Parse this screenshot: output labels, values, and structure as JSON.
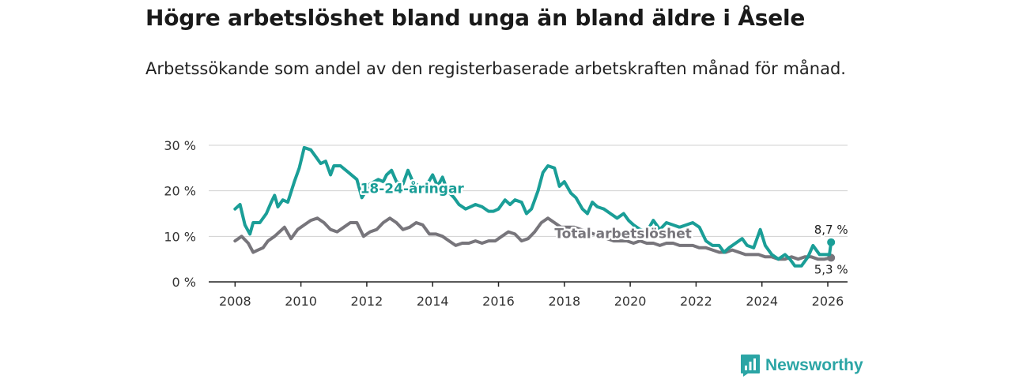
{
  "header": {
    "title": "Högre arbetslöshet bland unga än bland äldre i Åsele",
    "subtitle": "Arbetssökande som andel av den registerbaserade arbetskraften månad för månad."
  },
  "brand": {
    "name": "Newsworthy",
    "logo": "newsworthy-logo-icon"
  },
  "colors": {
    "youth": "#1a9e97",
    "total": "#77757b",
    "grid": "#d0d0d0",
    "axis": "#222222",
    "brand": "#2ba5a5"
  },
  "chart_data": {
    "type": "line",
    "title": "Högre arbetslöshet bland unga än bland äldre i Åsele",
    "xlabel": "",
    "ylabel": "",
    "xlim": [
      2007.2,
      2026.6
    ],
    "ylim": [
      0,
      30
    ],
    "grid": true,
    "y_ticks": [
      0,
      10,
      20,
      30
    ],
    "y_tick_labels": [
      "0 %",
      "10 %",
      "20 %",
      "30 %"
    ],
    "x_ticks": [
      2008,
      2010,
      2012,
      2014,
      2016,
      2018,
      2020,
      2022,
      2024,
      2026
    ],
    "x_tick_labels": [
      "2008",
      "2010",
      "2012",
      "2014",
      "2016",
      "2018",
      "2020",
      "2022",
      "2024",
      "2026"
    ],
    "series": [
      {
        "name": "18-24-åringar",
        "color": "#1a9e97",
        "end_label": "8,7 %",
        "points": [
          [
            2008.0,
            16
          ],
          [
            2008.15,
            17
          ],
          [
            2008.3,
            12.5
          ],
          [
            2008.45,
            10.5
          ],
          [
            2008.55,
            13
          ],
          [
            2008.75,
            13
          ],
          [
            2008.95,
            15
          ],
          [
            2009.1,
            17.5
          ],
          [
            2009.2,
            19
          ],
          [
            2009.3,
            16.5
          ],
          [
            2009.45,
            18
          ],
          [
            2009.6,
            17.5
          ],
          [
            2009.8,
            22
          ],
          [
            2009.95,
            25
          ],
          [
            2010.1,
            29.5
          ],
          [
            2010.3,
            29
          ],
          [
            2010.45,
            27.5
          ],
          [
            2010.6,
            26
          ],
          [
            2010.75,
            26.5
          ],
          [
            2010.9,
            23.5
          ],
          [
            2011.0,
            25.5
          ],
          [
            2011.2,
            25.5
          ],
          [
            2011.45,
            24
          ],
          [
            2011.7,
            22.5
          ],
          [
            2011.85,
            18.5
          ],
          [
            2012.1,
            21.5
          ],
          [
            2012.35,
            22.5
          ],
          [
            2012.5,
            22
          ],
          [
            2012.6,
            23.5
          ],
          [
            2012.75,
            24.5
          ],
          [
            2012.9,
            22
          ],
          [
            2013.1,
            21.5
          ],
          [
            2013.25,
            24.5
          ],
          [
            2013.4,
            22
          ],
          [
            2013.6,
            21
          ],
          [
            2013.8,
            21
          ],
          [
            2014.0,
            23.5
          ],
          [
            2014.15,
            21
          ],
          [
            2014.3,
            23
          ],
          [
            2014.45,
            20
          ],
          [
            2014.65,
            18.5
          ],
          [
            2014.8,
            17
          ],
          [
            2015.0,
            16
          ],
          [
            2015.15,
            16.5
          ],
          [
            2015.3,
            17
          ],
          [
            2015.5,
            16.5
          ],
          [
            2015.7,
            15.5
          ],
          [
            2015.85,
            15.5
          ],
          [
            2016.0,
            16
          ],
          [
            2016.2,
            18
          ],
          [
            2016.35,
            17
          ],
          [
            2016.5,
            18
          ],
          [
            2016.7,
            17.5
          ],
          [
            2016.85,
            15
          ],
          [
            2017.0,
            16
          ],
          [
            2017.2,
            20
          ],
          [
            2017.35,
            24
          ],
          [
            2017.5,
            25.5
          ],
          [
            2017.7,
            25
          ],
          [
            2017.85,
            21
          ],
          [
            2018.0,
            22
          ],
          [
            2018.2,
            19.5
          ],
          [
            2018.35,
            18.5
          ],
          [
            2018.55,
            16
          ],
          [
            2018.7,
            15
          ],
          [
            2018.85,
            17.5
          ],
          [
            2019.0,
            16.5
          ],
          [
            2019.2,
            16
          ],
          [
            2019.4,
            15
          ],
          [
            2019.6,
            14
          ],
          [
            2019.8,
            15
          ],
          [
            2019.95,
            13.5
          ],
          [
            2020.1,
            12.5
          ],
          [
            2020.3,
            11.5
          ],
          [
            2020.5,
            11
          ],
          [
            2020.7,
            13.5
          ],
          [
            2020.9,
            11.5
          ],
          [
            2021.1,
            13
          ],
          [
            2021.3,
            12.5
          ],
          [
            2021.5,
            12
          ],
          [
            2021.7,
            12.5
          ],
          [
            2021.9,
            13
          ],
          [
            2022.1,
            12
          ],
          [
            2022.3,
            9
          ],
          [
            2022.5,
            8
          ],
          [
            2022.7,
            8
          ],
          [
            2022.85,
            6.5
          ],
          [
            2023.0,
            7.5
          ],
          [
            2023.2,
            8.5
          ],
          [
            2023.4,
            9.5
          ],
          [
            2023.55,
            8
          ],
          [
            2023.75,
            7.5
          ],
          [
            2023.95,
            11.5
          ],
          [
            2024.1,
            8
          ],
          [
            2024.3,
            6
          ],
          [
            2024.5,
            5
          ],
          [
            2024.7,
            6
          ],
          [
            2024.85,
            5
          ],
          [
            2025.0,
            3.5
          ],
          [
            2025.2,
            3.5
          ],
          [
            2025.4,
            5.5
          ],
          [
            2025.55,
            8
          ],
          [
            2025.75,
            6
          ],
          [
            2025.9,
            6
          ],
          [
            2026.05,
            6
          ],
          [
            2026.1,
            8.7
          ]
        ]
      },
      {
        "name": "Total arbetslöshet",
        "color": "#77757b",
        "end_label": "5,3 %",
        "points": [
          [
            2008.0,
            9
          ],
          [
            2008.2,
            10
          ],
          [
            2008.4,
            8.5
          ],
          [
            2008.55,
            6.5
          ],
          [
            2008.7,
            7
          ],
          [
            2008.85,
            7.5
          ],
          [
            2009.0,
            9
          ],
          [
            2009.2,
            10
          ],
          [
            2009.35,
            11
          ],
          [
            2009.5,
            12
          ],
          [
            2009.7,
            9.5
          ],
          [
            2009.9,
            11.5
          ],
          [
            2010.1,
            12.5
          ],
          [
            2010.3,
            13.5
          ],
          [
            2010.5,
            14
          ],
          [
            2010.7,
            13
          ],
          [
            2010.9,
            11.5
          ],
          [
            2011.1,
            11
          ],
          [
            2011.3,
            12
          ],
          [
            2011.5,
            13
          ],
          [
            2011.7,
            13
          ],
          [
            2011.9,
            10
          ],
          [
            2012.1,
            11
          ],
          [
            2012.3,
            11.5
          ],
          [
            2012.5,
            13
          ],
          [
            2012.7,
            14
          ],
          [
            2012.9,
            13
          ],
          [
            2013.1,
            11.5
          ],
          [
            2013.3,
            12
          ],
          [
            2013.5,
            13
          ],
          [
            2013.7,
            12.5
          ],
          [
            2013.9,
            10.5
          ],
          [
            2014.1,
            10.5
          ],
          [
            2014.3,
            10
          ],
          [
            2014.5,
            9
          ],
          [
            2014.7,
            8
          ],
          [
            2014.9,
            8.5
          ],
          [
            2015.1,
            8.5
          ],
          [
            2015.3,
            9
          ],
          [
            2015.5,
            8.5
          ],
          [
            2015.7,
            9
          ],
          [
            2015.9,
            9
          ],
          [
            2016.1,
            10
          ],
          [
            2016.3,
            11
          ],
          [
            2016.5,
            10.5
          ],
          [
            2016.7,
            9
          ],
          [
            2016.9,
            9.5
          ],
          [
            2017.1,
            11
          ],
          [
            2017.3,
            13
          ],
          [
            2017.5,
            14
          ],
          [
            2017.7,
            13
          ],
          [
            2017.9,
            12
          ],
          [
            2018.1,
            12
          ],
          [
            2018.3,
            12
          ],
          [
            2018.5,
            11.5
          ],
          [
            2018.7,
            11
          ],
          [
            2018.9,
            10.5
          ],
          [
            2019.1,
            10
          ],
          [
            2019.3,
            9.5
          ],
          [
            2019.5,
            9
          ],
          [
            2019.7,
            9
          ],
          [
            2019.9,
            9
          ],
          [
            2020.1,
            8.5
          ],
          [
            2020.3,
            9
          ],
          [
            2020.5,
            8.5
          ],
          [
            2020.7,
            8.5
          ],
          [
            2020.9,
            8
          ],
          [
            2021.1,
            8.5
          ],
          [
            2021.3,
            8.5
          ],
          [
            2021.5,
            8
          ],
          [
            2021.7,
            8
          ],
          [
            2021.9,
            8
          ],
          [
            2022.1,
            7.5
          ],
          [
            2022.3,
            7.5
          ],
          [
            2022.5,
            7
          ],
          [
            2022.7,
            6.5
          ],
          [
            2022.9,
            6.5
          ],
          [
            2023.1,
            7
          ],
          [
            2023.3,
            6.5
          ],
          [
            2023.5,
            6
          ],
          [
            2023.7,
            6
          ],
          [
            2023.9,
            6
          ],
          [
            2024.1,
            5.5
          ],
          [
            2024.3,
            5.5
          ],
          [
            2024.5,
            5
          ],
          [
            2024.7,
            5
          ],
          [
            2024.9,
            5.5
          ],
          [
            2025.1,
            5
          ],
          [
            2025.3,
            5.5
          ],
          [
            2025.5,
            5.5
          ],
          [
            2025.7,
            5
          ],
          [
            2025.9,
            5
          ],
          [
            2026.1,
            5.3
          ]
        ]
      }
    ],
    "annotations": [
      {
        "text": "18-24-åringar",
        "series": "18-24-åringar",
        "x": 2011.8,
        "y": 19.5
      },
      {
        "text": "Total arbetslöshet",
        "series": "Total arbetslöshet",
        "x": 2017.7,
        "y": 9.6
      }
    ]
  }
}
